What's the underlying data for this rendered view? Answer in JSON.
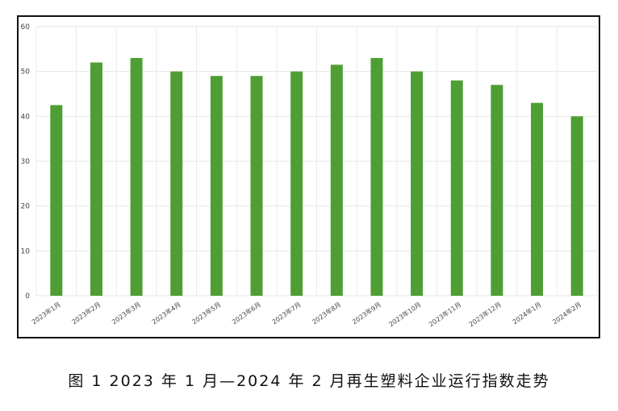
{
  "caption": "图 1  2023 年 1 月—2024 年 2 月再生塑料企业运行指数走势",
  "colors": {
    "bar": "#4e9e34",
    "grid": "#e6e6e6",
    "axis_text": "#444444",
    "background": "#ffffff"
  },
  "chart_data": {
    "type": "bar",
    "title": "",
    "xlabel": "",
    "ylabel": "",
    "ylim": [
      0,
      60
    ],
    "yticks": [
      0,
      10,
      20,
      30,
      40,
      50,
      60
    ],
    "grid": true,
    "categories": [
      "2023年1月",
      "2023年2月",
      "2023年3月",
      "2023年4月",
      "2023年5月",
      "2023年6月",
      "2023年7月",
      "2023年8月",
      "2023年9月",
      "2023年10月",
      "2023年11月",
      "2023年12月",
      "2024年1月",
      "2024年2月"
    ],
    "values": [
      42.5,
      52,
      53,
      50,
      49,
      49,
      50,
      51.5,
      53,
      50,
      48,
      47,
      43,
      40
    ]
  }
}
